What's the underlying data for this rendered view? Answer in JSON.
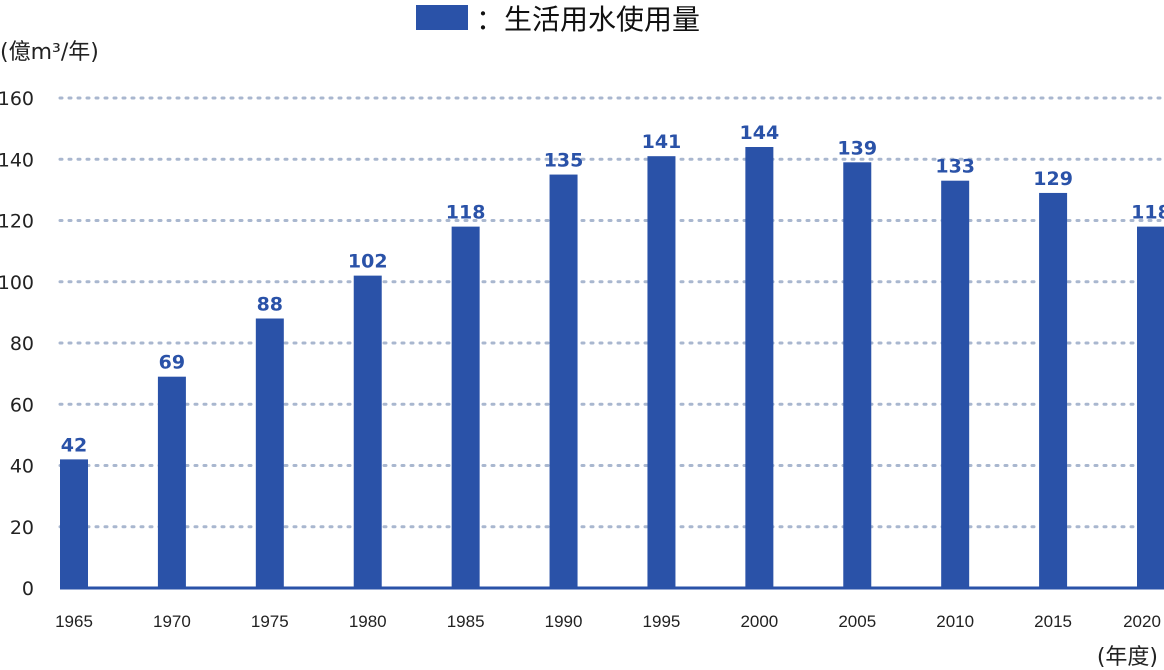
{
  "chart_data": {
    "type": "bar",
    "categories": [
      "1965",
      "1970",
      "1975",
      "1980",
      "1985",
      "1990",
      "1995",
      "2000",
      "2005",
      "2010",
      "2015",
      "2020"
    ],
    "series": [
      {
        "name": "：生活用水使用量",
        "values": [
          42,
          69,
          88,
          102,
          118,
          135,
          141,
          144,
          139,
          133,
          129,
          118
        ]
      }
    ],
    "ylabel": "(億m³/年)",
    "xlabel": "(年度)",
    "ylim": [
      0,
      160
    ],
    "yticks": [
      0,
      20,
      40,
      60,
      80,
      100,
      120,
      140,
      160
    ],
    "grid": true,
    "legend_position": "top-center",
    "colors": {
      "bar": "#2a52a8",
      "grid": "#a9b7cf",
      "value_label": "#2a52a8",
      "axis": "#2a52a8"
    }
  }
}
